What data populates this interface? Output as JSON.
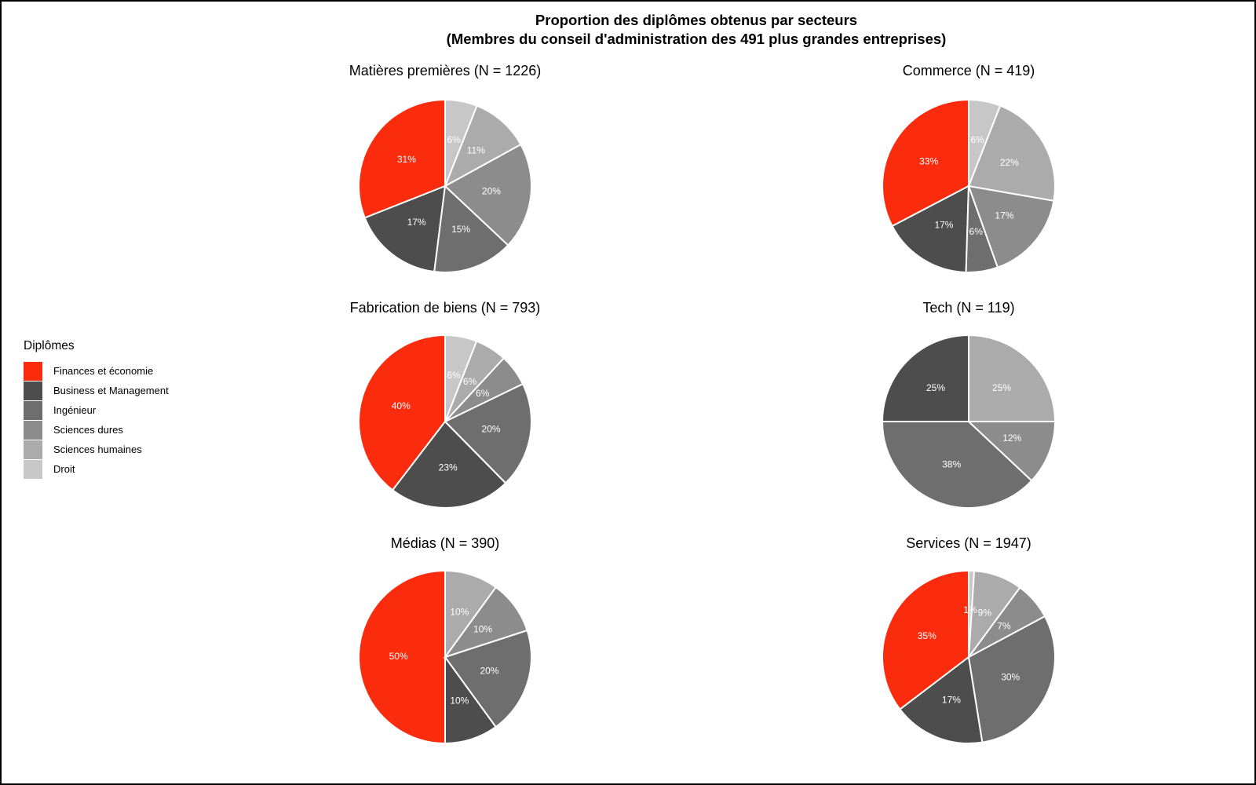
{
  "page": {
    "title_line1": "Proportion des diplômes obtenus par secteurs",
    "title_line2": "(Membres du conseil d'administration des 491 plus grandes entreprises)"
  },
  "legend": {
    "title": "Diplômes",
    "items": [
      {
        "label": "Finances et économie",
        "color": "#FB2C0E"
      },
      {
        "label": "Business et Management",
        "color": "#4D4D4D"
      },
      {
        "label": "Ingénieur",
        "color": "#6E6E6E"
      },
      {
        "label": "Sciences dures",
        "color": "#8C8C8C"
      },
      {
        "label": "Sciences humaines",
        "color": "#ABABAB"
      },
      {
        "label": "Droit",
        "color": "#C7C7C7"
      }
    ]
  },
  "chart_data": {
    "type": "pie",
    "title": "Proportion des diplômes obtenus par secteurs",
    "subtitle": "(Membres du conseil d'administration des 491 plus grandes entreprises)",
    "categories": [
      "Finances et économie",
      "Business et Management",
      "Ingénieur",
      "Sciences dures",
      "Sciences humaines",
      "Droit"
    ],
    "colors": [
      "#FB2C0E",
      "#4D4D4D",
      "#6E6E6E",
      "#8C8C8C",
      "#ABABAB",
      "#C7C7C7"
    ],
    "unit": "%",
    "layout_hints": {
      "grid": "3 rows x 2 columns",
      "start_angle": "top",
      "direction": "counterclockwise in category order (red first), i.e. clockwise order is Droit → Sciences humaines → Sciences dures → Ingénieur → Business → Finances",
      "slice_border_color": "#FFFFFF",
      "label_color": "#FFFFFF",
      "legend_position": "left"
    },
    "pies": [
      {
        "title": "Matières premières (N = 1226)",
        "sector": "Matières premières",
        "n": 1226,
        "values": [
          31,
          17,
          15,
          20,
          11,
          6
        ]
      },
      {
        "title": "Commerce (N = 419)",
        "sector": "Commerce",
        "n": 419,
        "values": [
          33,
          17,
          6,
          17,
          22,
          6
        ]
      },
      {
        "title": "Fabrication de biens (N = 793)",
        "sector": "Fabrication de biens",
        "n": 793,
        "values": [
          40,
          23,
          20,
          6,
          6,
          6
        ]
      },
      {
        "title": "Tech (N = 119)",
        "sector": "Tech",
        "n": 119,
        "values": [
          0,
          25,
          38,
          12,
          25,
          0
        ]
      },
      {
        "title": "Médias (N = 390)",
        "sector": "Médias",
        "n": 390,
        "values": [
          50,
          10,
          20,
          10,
          10,
          0
        ]
      },
      {
        "title": "Services (N = 1947)",
        "sector": "Services",
        "n": 1947,
        "values": [
          35,
          17,
          30,
          7,
          9,
          1
        ]
      }
    ]
  }
}
